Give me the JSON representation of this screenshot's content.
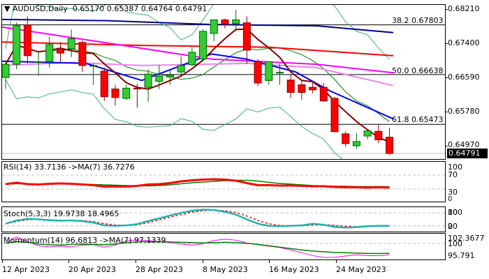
{
  "header": {
    "symbol": "AUDUSD,Daily",
    "open": "0.65170",
    "high": "0.65387",
    "low": "0.64764",
    "close": "0.64791"
  },
  "main_axis": [
    "0.68210",
    "0.67400",
    "0.66590",
    "0.65780",
    "0.64970"
  ],
  "current_price": "0.64791",
  "fib_levels": [
    {
      "label": "38.2 0.67803",
      "value": 0.67803
    },
    {
      "label": "50.0 0.66638",
      "value": 0.66638
    },
    {
      "label": "61.8 0.65473",
      "value": 0.65473
    }
  ],
  "rsi": {
    "label": "RSI(14) 33.7136  ->MA(7) 36.7276",
    "axis": [
      "100",
      "70",
      "30",
      "0"
    ]
  },
  "stoch": {
    "label": "Stoch(5,3,3) 19.9738 18.4965",
    "axis": [
      "100",
      "80",
      "20",
      "0"
    ]
  },
  "momentum": {
    "label": "Momentum(14) 96.6813  ->MA(7) 97.1339",
    "axis": [
      "102.3677",
      "100",
      "95.791"
    ]
  },
  "dates": [
    "12 Apr 2023",
    "20 Apr 2023",
    "28 Apr 2023",
    "8 May 2023",
    "16 May 2023",
    "24 May 2023"
  ],
  "colors": {
    "bull": "#32CD32",
    "bear": "#FF0000",
    "rsi": "#FF0000",
    "rsi_ma": "#008000",
    "stoch_main": "#20B2AA",
    "stoch_signal": "#FF0000",
    "momentum": "#FF00FF",
    "momentum_ma": "#008000"
  },
  "chart_data": {
    "type": "candlestick",
    "title": "AUDUSD,Daily",
    "ylim": [
      0.6463,
      0.6829
    ],
    "x_labels": [
      "12 Apr 2023",
      "20 Apr 2023",
      "28 Apr 2023",
      "8 May 2023",
      "16 May 2023",
      "24 May 2023"
    ],
    "candles": [
      {
        "o": 0.6657,
        "h": 0.669,
        "l": 0.663,
        "c": 0.6688
      },
      {
        "o": 0.6688,
        "h": 0.6786,
        "l": 0.6676,
        "c": 0.6778
      },
      {
        "o": 0.678,
        "h": 0.68,
        "l": 0.669,
        "c": 0.6708
      },
      {
        "o": 0.6694,
        "h": 0.6719,
        "l": 0.6661,
        "c": 0.6694
      },
      {
        "o": 0.6694,
        "h": 0.6752,
        "l": 0.668,
        "c": 0.6734
      },
      {
        "o": 0.6722,
        "h": 0.674,
        "l": 0.6693,
        "c": 0.6714
      },
      {
        "o": 0.6724,
        "h": 0.6769,
        "l": 0.6705,
        "c": 0.6748
      },
      {
        "o": 0.6739,
        "h": 0.6744,
        "l": 0.667,
        "c": 0.6685
      },
      {
        "o": 0.6685,
        "h": 0.6689,
        "l": 0.664,
        "c": 0.6685
      },
      {
        "o": 0.6672,
        "h": 0.668,
        "l": 0.6602,
        "c": 0.6612
      },
      {
        "o": 0.663,
        "h": 0.664,
        "l": 0.6591,
        "c": 0.661
      },
      {
        "o": 0.6608,
        "h": 0.664,
        "l": 0.6604,
        "c": 0.6632
      },
      {
        "o": 0.6632,
        "h": 0.6642,
        "l": 0.6586,
        "c": 0.663
      },
      {
        "o": 0.6634,
        "h": 0.6676,
        "l": 0.66,
        "c": 0.6665
      },
      {
        "o": 0.6648,
        "h": 0.6686,
        "l": 0.663,
        "c": 0.666
      },
      {
        "o": 0.6658,
        "h": 0.6675,
        "l": 0.664,
        "c": 0.6662
      },
      {
        "o": 0.667,
        "h": 0.6706,
        "l": 0.666,
        "c": 0.6685
      },
      {
        "o": 0.6687,
        "h": 0.6728,
        "l": 0.6684,
        "c": 0.6716
      },
      {
        "o": 0.67,
        "h": 0.677,
        "l": 0.6695,
        "c": 0.6765
      },
      {
        "o": 0.676,
        "h": 0.6785,
        "l": 0.6742,
        "c": 0.6792
      },
      {
        "o": 0.6792,
        "h": 0.6795,
        "l": 0.6772,
        "c": 0.6782
      },
      {
        "o": 0.6783,
        "h": 0.6815,
        "l": 0.6765,
        "c": 0.6792
      },
      {
        "o": 0.6785,
        "h": 0.68,
        "l": 0.6689,
        "c": 0.6721
      },
      {
        "o": 0.6694,
        "h": 0.67,
        "l": 0.6637,
        "c": 0.6644
      },
      {
        "o": 0.665,
        "h": 0.6677,
        "l": 0.664,
        "c": 0.6694
      },
      {
        "o": 0.6668,
        "h": 0.669,
        "l": 0.664,
        "c": 0.6669
      },
      {
        "o": 0.6651,
        "h": 0.6664,
        "l": 0.6609,
        "c": 0.6622
      },
      {
        "o": 0.664,
        "h": 0.665,
        "l": 0.6605,
        "c": 0.6622
      },
      {
        "o": 0.6634,
        "h": 0.6646,
        "l": 0.662,
        "c": 0.6628
      },
      {
        "o": 0.6634,
        "h": 0.6644,
        "l": 0.66,
        "c": 0.6602
      },
      {
        "o": 0.6608,
        "h": 0.6612,
        "l": 0.6545,
        "c": 0.653
      },
      {
        "o": 0.6525,
        "h": 0.6531,
        "l": 0.6495,
        "c": 0.6502
      },
      {
        "o": 0.6497,
        "h": 0.6527,
        "l": 0.649,
        "c": 0.6507
      },
      {
        "o": 0.652,
        "h": 0.6533,
        "l": 0.6512,
        "c": 0.6532
      },
      {
        "o": 0.6531,
        "h": 0.6547,
        "l": 0.6503,
        "c": 0.6511
      },
      {
        "o": 0.6517,
        "h": 0.6539,
        "l": 0.6476,
        "c": 0.6479
      }
    ],
    "overlays": [
      "MA blue",
      "MA red",
      "MA magenta",
      "MA violet",
      "MA dark red (5)",
      "Bollinger bands green"
    ],
    "fibonacci": {
      "38.2": 0.67803,
      "50.0": 0.66638,
      "61.8": 0.65473
    },
    "indicators": {
      "rsi": {
        "period": 14,
        "value": 33.7136,
        "ma7": 36.7276,
        "levels": [
          30,
          70
        ]
      },
      "stoch": {
        "params": "5,3,3",
        "main": 19.9738,
        "signal": 18.4965,
        "levels": [
          20,
          80
        ]
      },
      "momentum": {
        "period": 14,
        "value": 96.6813,
        "ma7": 97.1339,
        "range": [
          95.791,
          102.3677
        ]
      }
    }
  }
}
